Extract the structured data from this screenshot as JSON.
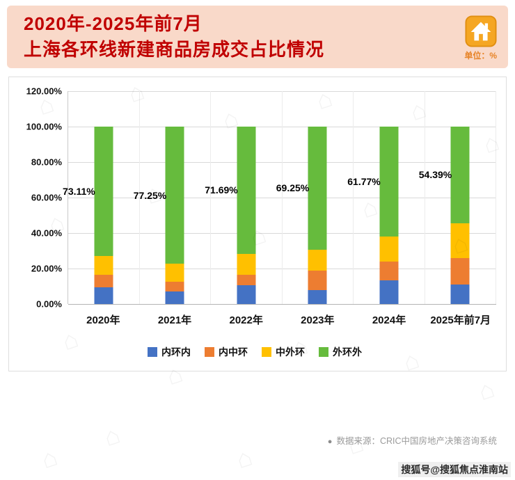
{
  "header": {
    "title_line1": "2020年-2025年前7月",
    "title_line2": "上海各环线新建商品房成交占比情况",
    "unit_label": "单位：%",
    "banner_bg": "#f9d9c9",
    "title_color": "#c00000",
    "house_icon_color": "#f5a623"
  },
  "chart_data": {
    "type": "bar",
    "stacked": true,
    "title": "2020年-2025年前7月上海各环线新建商品房成交占比情况",
    "xlabel": "",
    "ylabel": "",
    "ylim": [
      0,
      120
    ],
    "grid": true,
    "legend_position": "bottom",
    "categories": [
      "2020年",
      "2021年",
      "2022年",
      "2023年",
      "2024年",
      "2025年前7月"
    ],
    "series": [
      {
        "name": "内环内",
        "color": "#4472c4",
        "values": [
          9.5,
          7.0,
          10.6,
          7.8,
          13.5,
          11.0
        ]
      },
      {
        "name": "内中环",
        "color": "#ed7d31",
        "values": [
          6.9,
          5.5,
          5.9,
          11.0,
          10.5,
          15.0
        ]
      },
      {
        "name": "中外环",
        "color": "#ffc000",
        "values": [
          10.49,
          10.25,
          11.81,
          11.95,
          14.23,
          19.61
        ]
      },
      {
        "name": "外环外",
        "color": "#66bb3d",
        "values": [
          73.11,
          77.25,
          71.69,
          69.25,
          61.77,
          54.39
        ]
      }
    ],
    "data_labels": [
      "73.11%",
      "77.25%",
      "71.69%",
      "69.25%",
      "61.77%",
      "54.39%"
    ],
    "y_ticks": [
      "120.00%",
      "100.00%",
      "80.00%",
      "60.00%",
      "40.00%",
      "20.00%",
      "0.00%"
    ]
  },
  "footer": {
    "source_bullet": "●",
    "source": "数据来源：CRIC中国房地产决策咨询系统",
    "watermark": "搜狐号@搜狐焦点淮南站"
  }
}
